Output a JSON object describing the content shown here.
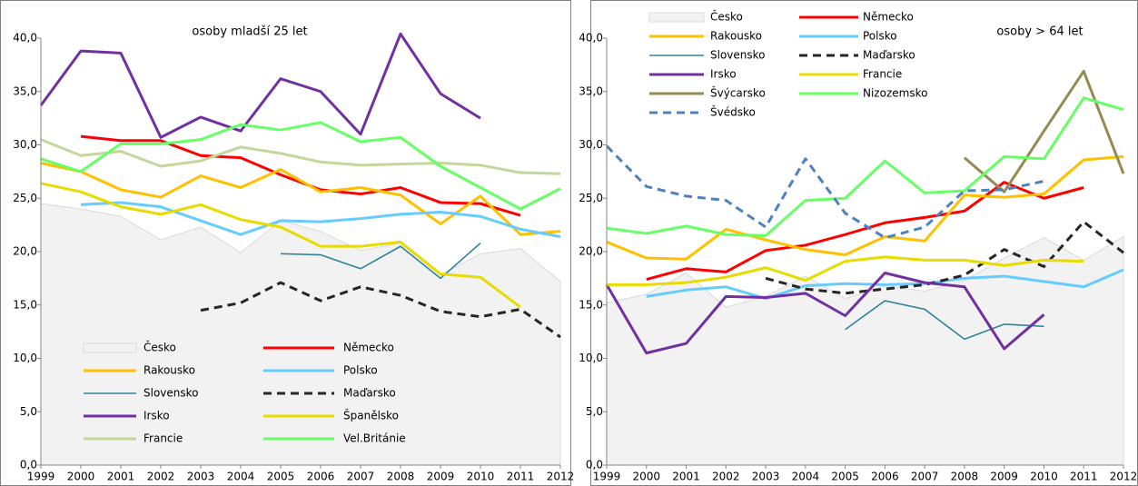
{
  "chart_data": [
    {
      "type": "line",
      "title": "osoby mladší 25 let",
      "categories": [
        "1999",
        "2000",
        "2001",
        "2002",
        "2003",
        "2004",
        "2005",
        "2006",
        "2007",
        "2008",
        "2009",
        "2010",
        "2011",
        "2012"
      ],
      "ylim": [
        0,
        40
      ],
      "yticks": [
        {
          "value": 0,
          "label": "0,0"
        },
        {
          "value": 5,
          "label": "5,0"
        },
        {
          "value": 10,
          "label": "10,0"
        },
        {
          "value": 15,
          "label": "15,0"
        },
        {
          "value": 20,
          "label": "20,0"
        },
        {
          "value": 25,
          "label": "25,0"
        },
        {
          "value": 30,
          "label": "30,0"
        },
        {
          "value": 35,
          "label": "35,0"
        },
        {
          "value": 40,
          "label": "40,0"
        }
      ],
      "series": [
        {
          "name": "Česko",
          "color": "#d9d9d9",
          "style": "area",
          "values": [
            24.5,
            24.0,
            23.3,
            21.1,
            22.3,
            19.9,
            22.9,
            21.9,
            20.1,
            20.8,
            17.8,
            19.8,
            20.3,
            17.2
          ]
        },
        {
          "name": "Německo",
          "color": "#ff0000",
          "values": [
            null,
            30.8,
            30.4,
            30.4,
            29.0,
            28.8,
            27.2,
            25.8,
            25.4,
            26.0,
            24.6,
            24.5,
            23.4,
            null
          ]
        },
        {
          "name": "Rakousko",
          "color": "#ffc000",
          "values": [
            28.3,
            27.5,
            25.8,
            25.1,
            27.1,
            26.0,
            27.7,
            25.6,
            26.0,
            25.3,
            22.6,
            25.2,
            21.6,
            21.9
          ]
        },
        {
          "name": "Polsko",
          "color": "#66ccff",
          "values": [
            null,
            24.4,
            24.6,
            24.2,
            22.9,
            21.6,
            22.9,
            22.8,
            23.1,
            23.5,
            23.7,
            23.3,
            22.1,
            21.4
          ]
        },
        {
          "name": "Slovensko",
          "color": "#31849b",
          "values": [
            null,
            null,
            null,
            null,
            null,
            null,
            19.8,
            19.7,
            18.4,
            20.5,
            17.5,
            20.8,
            null,
            null
          ]
        },
        {
          "name": "Maďarsko",
          "color": "#262626",
          "style": "dashed",
          "values": [
            null,
            null,
            null,
            null,
            14.5,
            15.2,
            17.1,
            15.4,
            16.7,
            15.9,
            14.4,
            13.9,
            14.6,
            12.0
          ]
        },
        {
          "name": "Irsko",
          "color": "#7030a0",
          "values": [
            33.7,
            38.8,
            38.6,
            30.7,
            32.6,
            31.3,
            36.2,
            35.0,
            31.0,
            40.4,
            34.8,
            32.5,
            null,
            null
          ]
        },
        {
          "name": "Španělsko",
          "color": "#e6dc00",
          "values": [
            26.4,
            25.6,
            24.2,
            23.5,
            24.4,
            23.0,
            22.3,
            20.5,
            20.5,
            20.9,
            17.9,
            17.6,
            14.8,
            null
          ]
        },
        {
          "name": "Francie",
          "color": "#c4d79b",
          "values": [
            30.5,
            29.0,
            29.4,
            28.0,
            28.5,
            29.8,
            29.2,
            28.4,
            28.1,
            28.2,
            28.3,
            28.1,
            27.4,
            27.3
          ]
        },
        {
          "name": "Vel.Británie",
          "color": "#66ff66",
          "values": [
            28.7,
            27.5,
            30.1,
            30.1,
            30.5,
            31.9,
            31.4,
            32.1,
            30.3,
            30.7,
            28.0,
            26.0,
            24.0,
            25.9
          ]
        }
      ]
    },
    {
      "type": "line",
      "title": "osoby > 64 let",
      "categories": [
        "1999",
        "2000",
        "2001",
        "2002",
        "2003",
        "2004",
        "2005",
        "2006",
        "2007",
        "2008",
        "2009",
        "2010",
        "2011",
        "2012"
      ],
      "ylim": [
        0,
        40
      ],
      "yticks": [
        {
          "value": 0,
          "label": "0,0"
        },
        {
          "value": 5,
          "label": "5,0"
        },
        {
          "value": 10,
          "label": "10,0"
        },
        {
          "value": 15,
          "label": "15,0"
        },
        {
          "value": 20,
          "label": "20,0"
        },
        {
          "value": 25,
          "label": "25,0"
        },
        {
          "value": 30,
          "label": "30,0"
        },
        {
          "value": 35,
          "label": "35,0"
        },
        {
          "value": 40,
          "label": "40,0"
        }
      ],
      "series": [
        {
          "name": "Česko",
          "color": "#d9d9d9",
          "style": "area",
          "values": [
            15.2,
            16.0,
            18.0,
            14.8,
            15.8,
            17.7,
            15.6,
            16.8,
            16.3,
            17.3,
            19.4,
            21.3,
            19.2,
            21.4
          ]
        },
        {
          "name": "Německo",
          "color": "#ff0000",
          "values": [
            null,
            17.4,
            18.4,
            18.1,
            20.1,
            20.6,
            21.6,
            22.7,
            23.2,
            23.8,
            26.5,
            25.0,
            26.0,
            null
          ]
        },
        {
          "name": "Rakousko",
          "color": "#ffc000",
          "values": [
            20.9,
            19.4,
            19.3,
            22.1,
            21.1,
            20.2,
            19.7,
            21.4,
            21.0,
            25.3,
            25.1,
            25.4,
            28.6,
            28.9
          ]
        },
        {
          "name": "Polsko",
          "color": "#66ccff",
          "values": [
            null,
            15.8,
            16.4,
            16.7,
            15.6,
            16.8,
            17.0,
            16.9,
            17.0,
            17.5,
            17.7,
            17.2,
            16.7,
            18.3
          ]
        },
        {
          "name": "Slovensko",
          "color": "#31849b",
          "values": [
            null,
            null,
            null,
            null,
            null,
            null,
            12.7,
            15.4,
            14.6,
            11.8,
            13.2,
            13.0,
            null,
            null
          ]
        },
        {
          "name": "Maďarsko",
          "color": "#262626",
          "style": "dashed",
          "values": [
            null,
            null,
            null,
            null,
            17.5,
            16.5,
            16.1,
            16.5,
            16.9,
            17.8,
            20.2,
            18.6,
            22.8,
            19.9
          ]
        },
        {
          "name": "Irsko",
          "color": "#7030a0",
          "values": [
            16.9,
            10.5,
            11.4,
            15.8,
            15.7,
            16.1,
            14.0,
            18.0,
            17.1,
            16.7,
            10.9,
            14.1,
            null,
            null
          ]
        },
        {
          "name": "Francie",
          "color": "#e6dc00",
          "values": [
            16.9,
            16.9,
            17.1,
            17.6,
            18.5,
            17.3,
            19.1,
            19.5,
            19.2,
            19.2,
            18.7,
            19.2,
            19.1,
            null
          ]
        },
        {
          "name": "Švýcarsko",
          "color": "#948a54",
          "values": [
            null,
            null,
            null,
            null,
            null,
            null,
            null,
            null,
            null,
            28.8,
            25.6,
            31.3,
            36.9,
            27.3
          ]
        },
        {
          "name": "Nizozemsko",
          "color": "#66ff66",
          "values": [
            22.2,
            21.7,
            22.4,
            21.6,
            21.5,
            24.8,
            25.0,
            28.5,
            25.5,
            25.7,
            28.9,
            28.7,
            34.4,
            33.3
          ]
        },
        {
          "name": "Švédsko",
          "color": "#4f81bd",
          "style": "dashed",
          "values": [
            29.9,
            26.1,
            25.2,
            24.8,
            22.3,
            28.7,
            23.6,
            21.3,
            22.3,
            25.7,
            25.8,
            26.6,
            null,
            null
          ]
        }
      ]
    }
  ]
}
